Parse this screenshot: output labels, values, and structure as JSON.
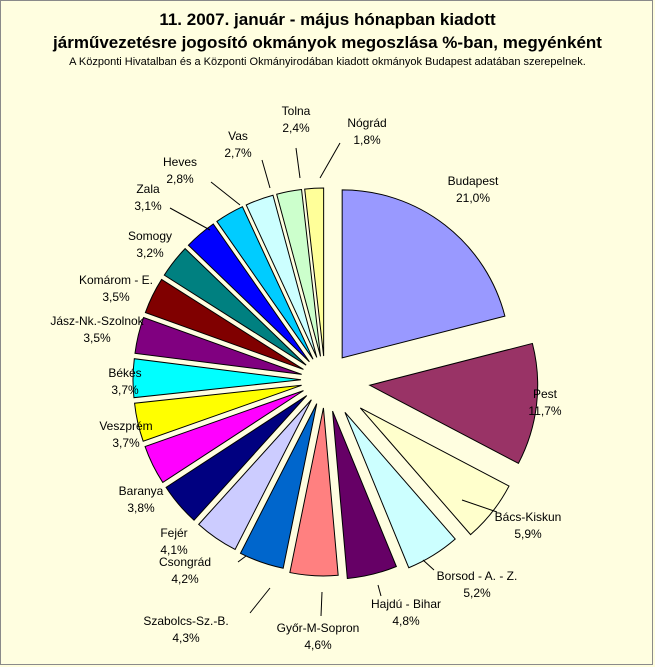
{
  "chart_data": {
    "type": "pie",
    "title": "11. 2007. január - május hónapban kiadott",
    "title_line2": "járművezetésre jogosító okmányok megoszlása %-ban, megyénként",
    "subtitle": "A Központi Hivatalban és a Központi Okmányirodában kiadott okmányok Budapest adatában szerepelnek.",
    "exploded": true,
    "legend": "none",
    "slices": [
      {
        "label": "Budapest",
        "value_label": "21,0%",
        "value": 21.0,
        "color": "#9999ff"
      },
      {
        "label": "Pest",
        "value_label": "11,7%",
        "value": 11.7,
        "color": "#993366"
      },
      {
        "label": "Bács-Kiskun",
        "value_label": "5,9%",
        "value": 5.9,
        "color": "#ffffcc"
      },
      {
        "label": "Borsod - A. - Z.",
        "value_label": "5,2%",
        "value": 5.2,
        "color": "#ccffff"
      },
      {
        "label": "Hajdú - Bihar",
        "value_label": "4,8%",
        "value": 4.8,
        "color": "#660066"
      },
      {
        "label": "Győr-M-Sopron",
        "value_label": "4,6%",
        "value": 4.6,
        "color": "#ff8080"
      },
      {
        "label": "Szabolcs-Sz.-B.",
        "value_label": "4,3%",
        "value": 4.3,
        "color": "#0066cc"
      },
      {
        "label": "Csongrád",
        "value_label": "4,2%",
        "value": 4.2,
        "color": "#ccccff"
      },
      {
        "label": "Fejér",
        "value_label": "4,1%",
        "value": 4.1,
        "color": "#000080"
      },
      {
        "label": "Baranya",
        "value_label": "3,8%",
        "value": 3.8,
        "color": "#ff00ff"
      },
      {
        "label": "Veszprém",
        "value_label": "3,7%",
        "value": 3.7,
        "color": "#ffff00"
      },
      {
        "label": "Békés",
        "value_label": "3,7%",
        "value": 3.7,
        "color": "#00ffff"
      },
      {
        "label": "Jász-Nk.-Szolnok",
        "value_label": "3,5%",
        "value": 3.5,
        "color": "#800080"
      },
      {
        "label": "Komárom - E.",
        "value_label": "3,5%",
        "value": 3.5,
        "color": "#800000"
      },
      {
        "label": "Somogy",
        "value_label": "3,2%",
        "value": 3.2,
        "color": "#008080"
      },
      {
        "label": "Zala",
        "value_label": "3,1%",
        "value": 3.1,
        "color": "#0000ff"
      },
      {
        "label": "Heves",
        "value_label": "2,8%",
        "value": 2.8,
        "color": "#00ccff"
      },
      {
        "label": "Vas",
        "value_label": "2,7%",
        "value": 2.7,
        "color": "#ccffff"
      },
      {
        "label": "Tolna",
        "value_label": "2,4%",
        "value": 2.4,
        "color": "#ccffcc"
      },
      {
        "label": "Nógrád",
        "value_label": "1,8%",
        "value": 1.8,
        "color": "#ffff99"
      }
    ]
  }
}
